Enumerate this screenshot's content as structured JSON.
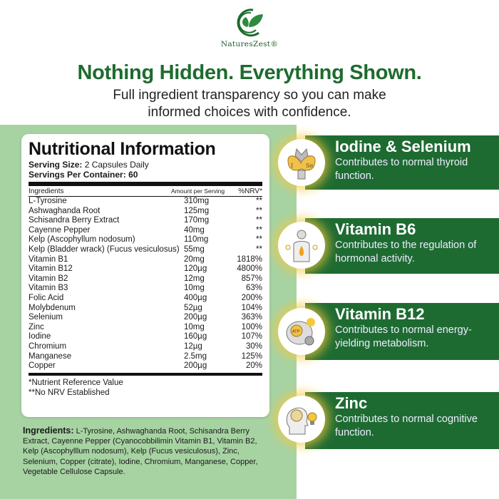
{
  "brand": {
    "name": "NaturesZest®"
  },
  "headline": "Nothing Hidden. Everything Shown.",
  "subheadline_1": "Full ingredient transparency so you can make",
  "subheadline_2": "informed choices with confidence.",
  "label": {
    "title": "Nutritional Information",
    "serving_size_label": "Serving Size:",
    "serving_size": "2 Capsules Daily",
    "servings_label": "Servings Per Container:",
    "servings": "60",
    "headers": [
      "Ingredients",
      "Amount per Serving",
      "%NRV*"
    ],
    "rows": [
      [
        "L-Tyrosine",
        "310mg",
        "**"
      ],
      [
        "Ashwaghanda Root",
        "125mg",
        "**"
      ],
      [
        "Schisandra Berry Extract",
        "170mg",
        "**"
      ],
      [
        "Cayenne Pepper",
        "40mg",
        "**"
      ],
      [
        "Kelp (Ascophyllum nodosum)",
        "110mg",
        "**"
      ],
      [
        "Kelp (Bladder wrack) (Fucus vesiculosus)",
        "55mg",
        "**"
      ],
      [
        "Vitamin B1",
        "20mg",
        "1818%"
      ],
      [
        "Vitamin B12",
        "120µg",
        "4800%"
      ],
      [
        "Vitamin B2",
        "12mg",
        "857%"
      ],
      [
        "Vitamin B3",
        "10mg",
        "63%"
      ],
      [
        "Folic Acid",
        "400µg",
        "200%"
      ],
      [
        "Molybdenum",
        "52µg",
        "104%"
      ],
      [
        "Selenium",
        "200µg",
        "363%"
      ],
      [
        "Zinc",
        "10mg",
        "100%"
      ],
      [
        "Iodine",
        "160µg",
        "107%"
      ],
      [
        "Chromium",
        "12µg",
        "30%"
      ],
      [
        "Manganese",
        "2.5mg",
        "125%"
      ],
      [
        "Copper",
        "200µg",
        "20%"
      ]
    ],
    "note1": "*Nutrient Reference Value",
    "note2": "**No NRV Established"
  },
  "ingredients": {
    "label": "Ingredients:",
    "text": "L-Tyrosine, Ashwaghanda Root, Schisandra Berry Extract, Cayenne Pepper (Cyanocobbilimin Vitamin B1, Vitamin B2, Kelp (Ascophylllum nodosum), Kelp (Fucus vesiculosus), Zinc, Selenium, Copper (citrate), Iodine, Chromium, Manganese, Copper, Vegetable Cellulose Capsule."
  },
  "benefits": [
    {
      "title": "Iodine & Selenium",
      "text": "Contributes to normal thyroid function.",
      "icon": "thyroid-icon",
      "icon_labels": [
        "I",
        "Se"
      ]
    },
    {
      "title": "Vitamin B6",
      "text": "Contributes to the regulation of hormonal activity.",
      "icon": "hormone-body-icon"
    },
    {
      "title": "Vitamin B12",
      "text": "Contributes to normal energy-yielding metabolism.",
      "icon": "atp-cell-icon",
      "icon_labels": [
        "ATP"
      ]
    },
    {
      "title": "Zinc",
      "text": "Contributes to normal cognitive function.",
      "icon": "brain-lightbulb-icon"
    }
  ],
  "colors": {
    "brand_green": "#1e6b2e",
    "panel_green": "#a7d3a3",
    "banner_green": "#1e6b32",
    "glow": "#f5c83c"
  }
}
